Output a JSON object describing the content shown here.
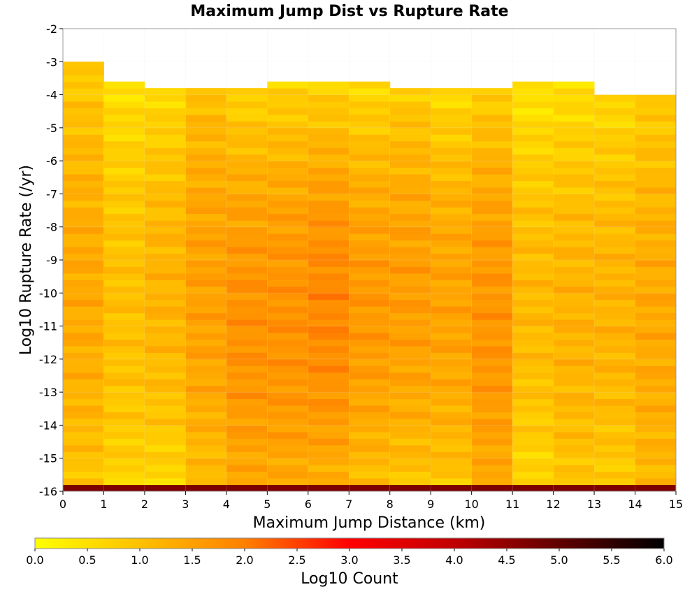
{
  "chart_data": {
    "type": "heatmap",
    "title": "Maximum Jump Dist vs Rupture Rate",
    "xlabel": "Maximum Jump Distance (km)",
    "ylabel": "Log10 Rupture Rate (/yr)",
    "xlim": [
      0,
      15
    ],
    "ylim": [
      -16,
      -2
    ],
    "x_ticks": [
      "0",
      "1",
      "2",
      "3",
      "4",
      "5",
      "6",
      "7",
      "8",
      "9",
      "10",
      "11",
      "12",
      "13",
      "14",
      "15"
    ],
    "y_ticks": [
      "-2",
      "-3",
      "-4",
      "-5",
      "-6",
      "-7",
      "-8",
      "-9",
      "-10",
      "-11",
      "-12",
      "-13",
      "-14",
      "-15",
      "-16"
    ],
    "x_bin_width": 1,
    "y_bin_width": 0.2,
    "y_bins_start": -16,
    "colorbar": {
      "label": "Log10 Count",
      "range": [
        0.0,
        6.0
      ],
      "ticks": [
        "0.0",
        "0.5",
        "1.0",
        "1.5",
        "2.0",
        "2.5",
        "3.0",
        "3.5",
        "4.0",
        "4.5",
        "5.0",
        "5.5",
        "6.0"
      ],
      "colors": [
        {
          "v": 0.0,
          "c": "#ffff00"
        },
        {
          "v": 1.0,
          "c": "#ffc000"
        },
        {
          "v": 2.0,
          "c": "#ff8000"
        },
        {
          "v": 3.0,
          "c": "#ff0000"
        },
        {
          "v": 4.0,
          "c": "#c00000"
        },
        {
          "v": 5.0,
          "c": "#600000"
        },
        {
          "v": 6.0,
          "c": "#000000"
        }
      ]
    },
    "columns": [
      {
        "x": 0,
        "top": -3.0,
        "v_top": 0.8,
        "v_mid": 1.4,
        "v_bot": 0.9,
        "bottom_row": 4.7
      },
      {
        "x": 1,
        "top": -3.6,
        "v_top": 0.5,
        "v_mid": 1.1,
        "v_bot": 0.7,
        "bottom_row": 4.7
      },
      {
        "x": 2,
        "top": -3.8,
        "v_top": 0.6,
        "v_mid": 1.2,
        "v_bot": 0.6,
        "bottom_row": 4.7
      },
      {
        "x": 3,
        "top": -3.8,
        "v_top": 1.0,
        "v_mid": 1.5,
        "v_bot": 1.0,
        "bottom_row": 4.7
      },
      {
        "x": 4,
        "top": -3.8,
        "v_top": 0.7,
        "v_mid": 2.0,
        "v_bot": 1.3,
        "bottom_row": 4.7
      },
      {
        "x": 5,
        "top": -3.6,
        "v_top": 0.7,
        "v_mid": 2.0,
        "v_bot": 1.3,
        "bottom_row": 4.7
      },
      {
        "x": 6,
        "top": -3.6,
        "v_top": 0.7,
        "v_mid": 2.1,
        "v_bot": 1.2,
        "bottom_row": 4.7
      },
      {
        "x": 7,
        "top": -3.6,
        "v_top": 0.6,
        "v_mid": 1.8,
        "v_bot": 1.0,
        "bottom_row": 4.7
      },
      {
        "x": 8,
        "top": -3.8,
        "v_top": 0.8,
        "v_mid": 1.6,
        "v_bot": 0.9,
        "bottom_row": 4.7
      },
      {
        "x": 9,
        "top": -3.8,
        "v_top": 0.6,
        "v_mid": 1.6,
        "v_bot": 0.9,
        "bottom_row": 4.7
      },
      {
        "x": 10,
        "top": -3.8,
        "v_top": 0.8,
        "v_mid": 1.9,
        "v_bot": 1.3,
        "bottom_row": 4.7
      },
      {
        "x": 11,
        "top": -3.6,
        "v_top": 0.4,
        "v_mid": 1.2,
        "v_bot": 0.6,
        "bottom_row": 4.7
      },
      {
        "x": 12,
        "top": -3.6,
        "v_top": 0.5,
        "v_mid": 1.4,
        "v_bot": 0.9,
        "bottom_row": 4.7
      },
      {
        "x": 13,
        "top": -4.0,
        "v_top": 0.6,
        "v_mid": 1.3,
        "v_bot": 0.8,
        "bottom_row": 4.7
      },
      {
        "x": 14,
        "top": -4.0,
        "v_top": 0.8,
        "v_mid": 1.5,
        "v_bot": 1.1,
        "bottom_row": 4.7
      }
    ]
  }
}
